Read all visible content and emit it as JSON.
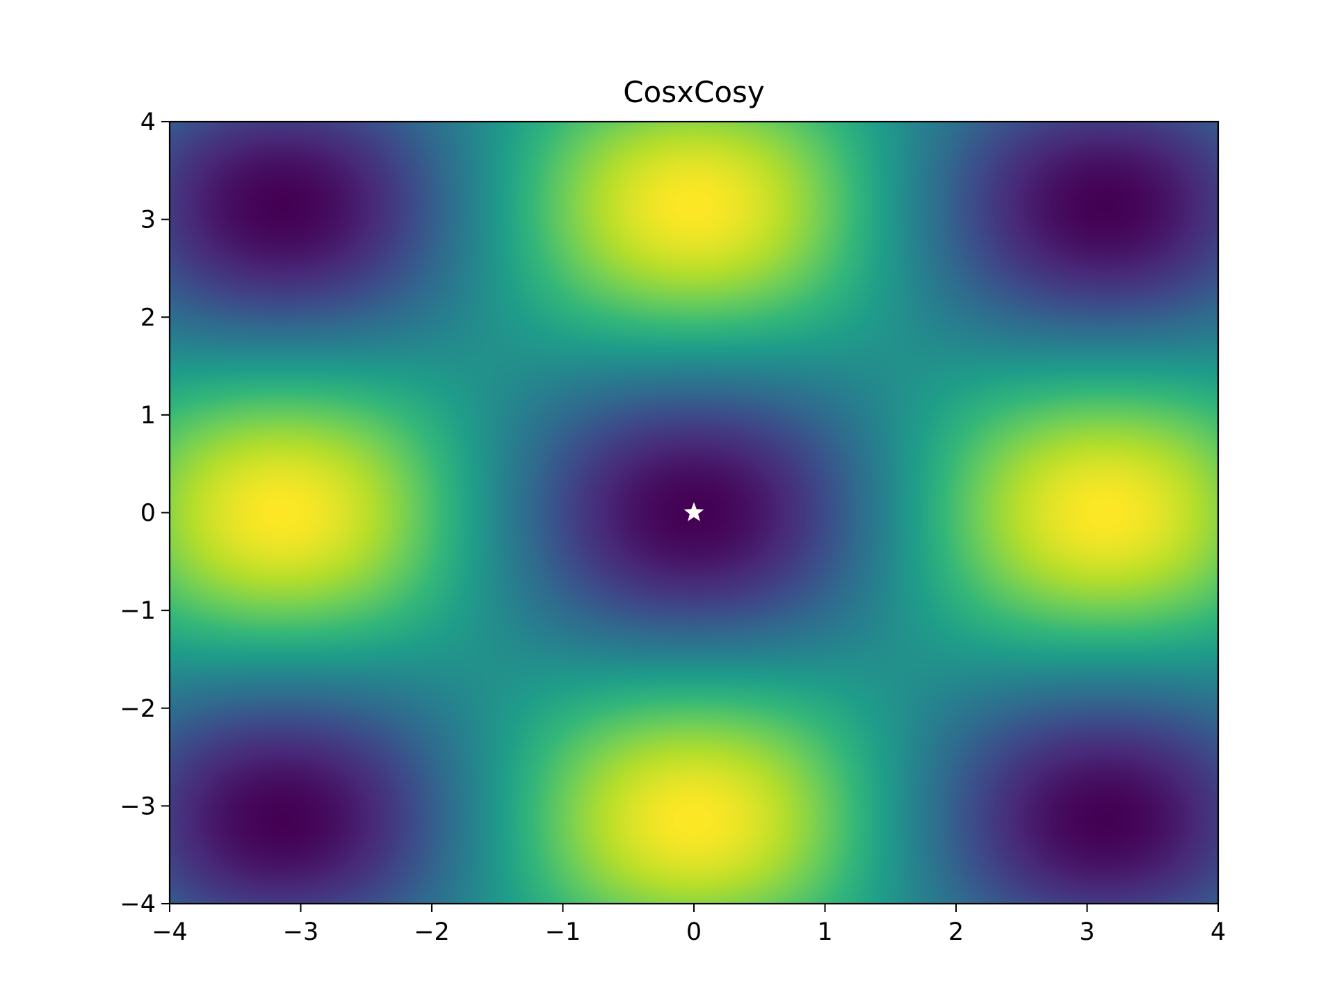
{
  "chart_data": {
    "type": "heatmap",
    "title": "CosxCosy",
    "xlabel": "",
    "ylabel": "",
    "function": "-cos(x)*cos(y)",
    "xlim": [
      -4,
      4
    ],
    "ylim": [
      -4,
      4
    ],
    "x_ticks": [
      -4,
      -3,
      -2,
      -1,
      0,
      1,
      2,
      3,
      4
    ],
    "y_ticks": [
      -4,
      -3,
      -2,
      -1,
      0,
      1,
      2,
      3,
      4
    ],
    "x_tick_labels": [
      "−4",
      "−3",
      "−2",
      "−1",
      "0",
      "1",
      "2",
      "3",
      "4"
    ],
    "y_tick_labels": [
      "−4",
      "−3",
      "−2",
      "−1",
      "0",
      "1",
      "2",
      "3",
      "4"
    ],
    "value_range": [
      -1,
      1
    ],
    "colormap": "viridis",
    "colormap_stops": [
      "#440154",
      "#482878",
      "#3e4989",
      "#31688e",
      "#26828e",
      "#1f9e89",
      "#35b779",
      "#6ece58",
      "#b5de2b",
      "#fde725"
    ],
    "grid": false,
    "marker": {
      "shape": "star",
      "x": 0,
      "y": 0,
      "color": "#ffffff"
    }
  }
}
